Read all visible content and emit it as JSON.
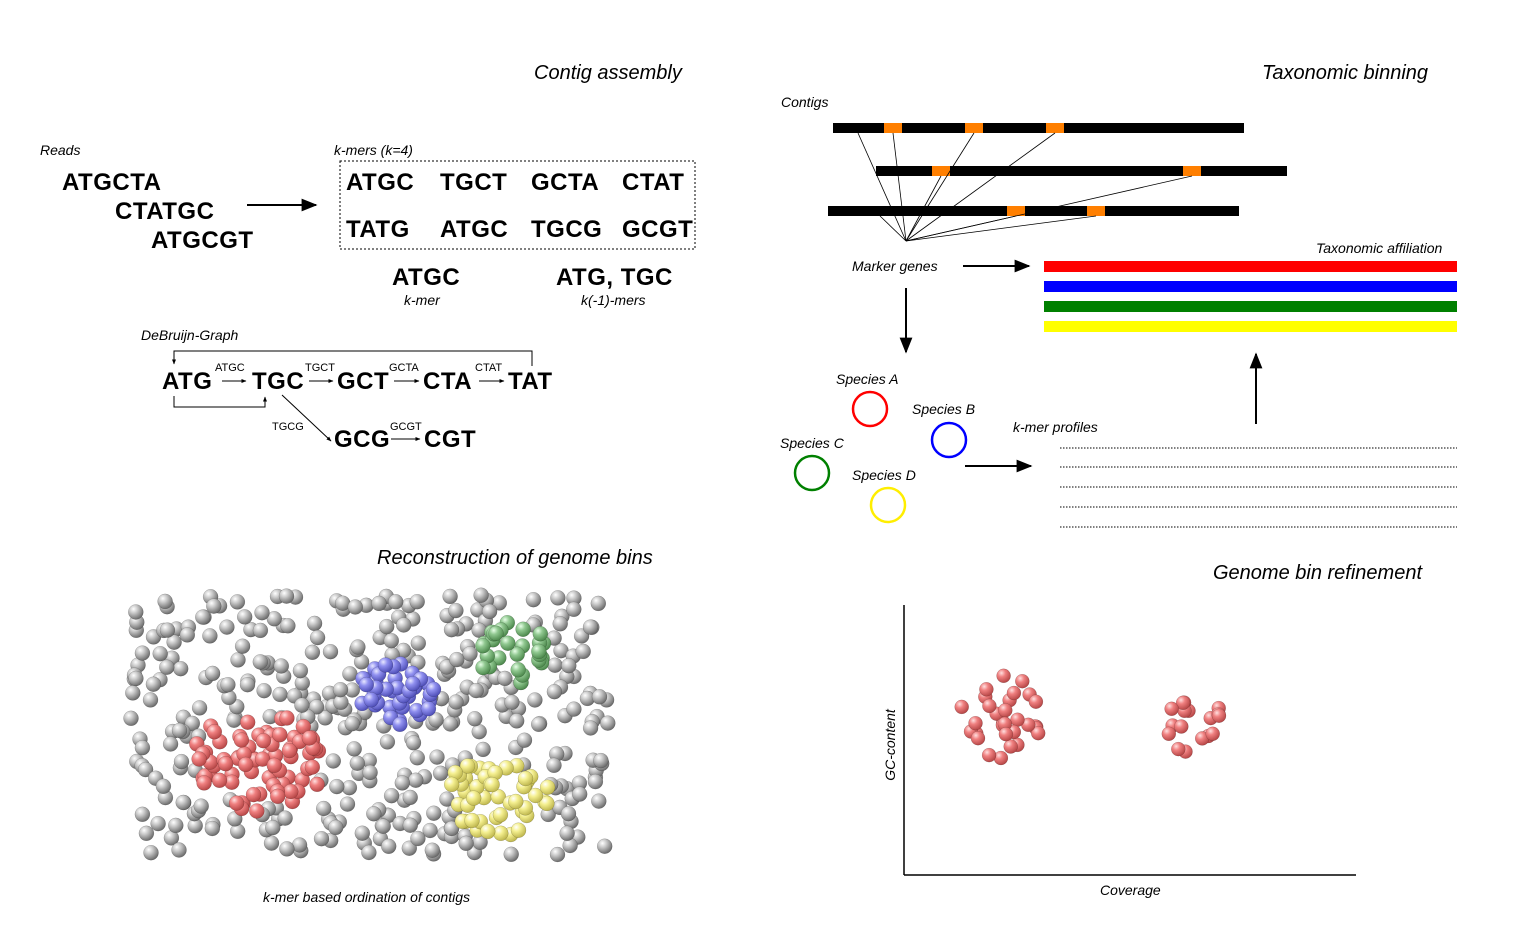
{
  "sections": {
    "contig_assembly": "Contig assembly",
    "taxonomic_binning": "Taxonomic binning",
    "reconstruction": "Reconstruction of genome bins",
    "refinement": "Genome bin refinement"
  },
  "assembly": {
    "reads_label": "Reads",
    "reads": [
      "ATGCTA",
      "CTATGC",
      "ATGCGT"
    ],
    "kmers_label": "k-mers (k=4)",
    "kmers_row1": [
      "ATGC",
      "TGCT",
      "GCTA",
      "CTAT"
    ],
    "kmers_row2": [
      "TATG",
      "ATGC",
      "TGCG",
      "GCGT"
    ],
    "example_kmer": "ATGC",
    "example_kmer_caption": "k-mer",
    "example_k1mers": "ATG, TGC",
    "example_k1mers_caption": "k(-1)-mers",
    "graph_label": "DeBruijn-Graph",
    "graph_nodes": [
      "ATG",
      "TGC",
      "GCT",
      "CTA",
      "TAT",
      "GCG",
      "CGT"
    ],
    "graph_edges": [
      "ATGC",
      "TGCT",
      "GCTA",
      "CTAT",
      "TGCG",
      "GCGT"
    ]
  },
  "binning": {
    "contigs_label": "Contigs",
    "marker_genes_label": "Marker genes",
    "taxonomic_affiliation_label": "Taxonomic affiliation",
    "affiliation_colors": [
      "#ff0000",
      "#0000ff",
      "#008000",
      "#ffff00"
    ],
    "species": [
      {
        "name": "Species A",
        "color": "#ff0000"
      },
      {
        "name": "Species B",
        "color": "#0000ff"
      },
      {
        "name": "Species C",
        "color": "#008000"
      },
      {
        "name": "Species D",
        "color": "#ffee00"
      }
    ],
    "kmer_profiles_label": "k-mer profiles"
  },
  "ordination": {
    "caption": "k-mer based ordination of contigs",
    "colors": {
      "grey": "#b4b4b4",
      "red": "#f07878",
      "blue": "#8c8cf0",
      "green": "#8cc88c",
      "yellow": "#f5f08c"
    }
  },
  "refinement_plot": {
    "xlabel": "Coverage",
    "ylabel": "GC-content",
    "point_color": "#f07878"
  }
}
